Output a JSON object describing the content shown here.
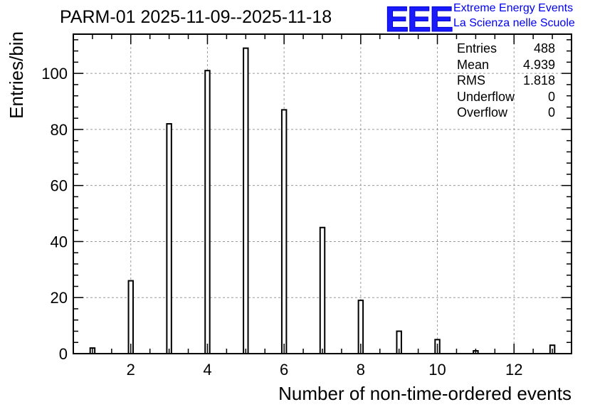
{
  "title": "PARM-01 2025-11-09--2025-11-18",
  "logo": {
    "mark": "EEE",
    "line1": "Extreme Energy Events",
    "line2": "La Scienza nelle Scuole",
    "color": "#1a1aff"
  },
  "stats": [
    {
      "label": "Entries",
      "value": "488"
    },
    {
      "label": "Mean",
      "value": "4.939"
    },
    {
      "label": "RMS",
      "value": "1.818"
    },
    {
      "label": "Underflow",
      "value": "0"
    },
    {
      "label": "Overflow",
      "value": "0"
    }
  ],
  "chart_data": {
    "type": "bar",
    "title": "PARM-01 2025-11-09--2025-11-18",
    "xlabel": "Number of non-time-ordered events",
    "ylabel": "Entries/bin",
    "xlim": [
      0.5,
      13.5
    ],
    "ylim": [
      0,
      114
    ],
    "bin_width": 0.12,
    "x": [
      1,
      2,
      3,
      4,
      5,
      6,
      7,
      8,
      9,
      10,
      11,
      13
    ],
    "values": [
      2,
      26,
      82,
      101,
      109,
      87,
      45,
      19,
      8,
      5,
      1,
      3
    ],
    "x_ticks": [
      2,
      4,
      6,
      8,
      10,
      12
    ],
    "y_ticks": [
      0,
      20,
      40,
      60,
      80,
      100
    ],
    "grid": true,
    "line_color": "#000000",
    "fill": "#ffffff"
  }
}
